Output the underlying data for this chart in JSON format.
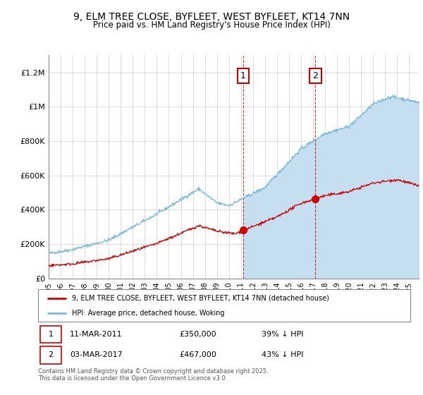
{
  "title": "9, ELM TREE CLOSE, BYFLEET, WEST BYFLEET, KT14 7NN",
  "subtitle": "Price paid vs. HM Land Registry's House Price Index (HPI)",
  "ylabel_ticks": [
    "£0",
    "£200K",
    "£400K",
    "£600K",
    "£800K",
    "£1M",
    "£1.2M"
  ],
  "ytick_values": [
    0,
    200000,
    400000,
    600000,
    800000,
    1000000,
    1200000
  ],
  "ylim": [
    0,
    1300000
  ],
  "xlim_start": 1995.0,
  "xlim_end": 2025.8,
  "hpi_color": "#7ab8d9",
  "hpi_fill_color": "#c5dff0",
  "price_color": "#cc0000",
  "purchase1_x": 2011.19,
  "purchase2_x": 2017.19,
  "purchase1_date": "11-MAR-2011",
  "purchase1_price": "£350,000",
  "purchase1_pct": "39% ↓ HPI",
  "purchase1_price_y": 350000,
  "purchase2_date": "03-MAR-2017",
  "purchase2_price": "£467,000",
  "purchase2_pct": "43% ↓ HPI",
  "purchase2_price_y": 467000,
  "legend_property": "9, ELM TREE CLOSE, BYFLEET, WEST BYFLEET, KT14 7NN (detached house)",
  "legend_hpi": "HPI: Average price, detached house, Woking",
  "footer": "Contains HM Land Registry data © Crown copyright and database right 2025.\nThis data is licensed under the Open Government Licence v3.0.",
  "box_color": "#cc0000",
  "hpi_noise_scale": 5000,
  "price_noise_scale": 4000
}
